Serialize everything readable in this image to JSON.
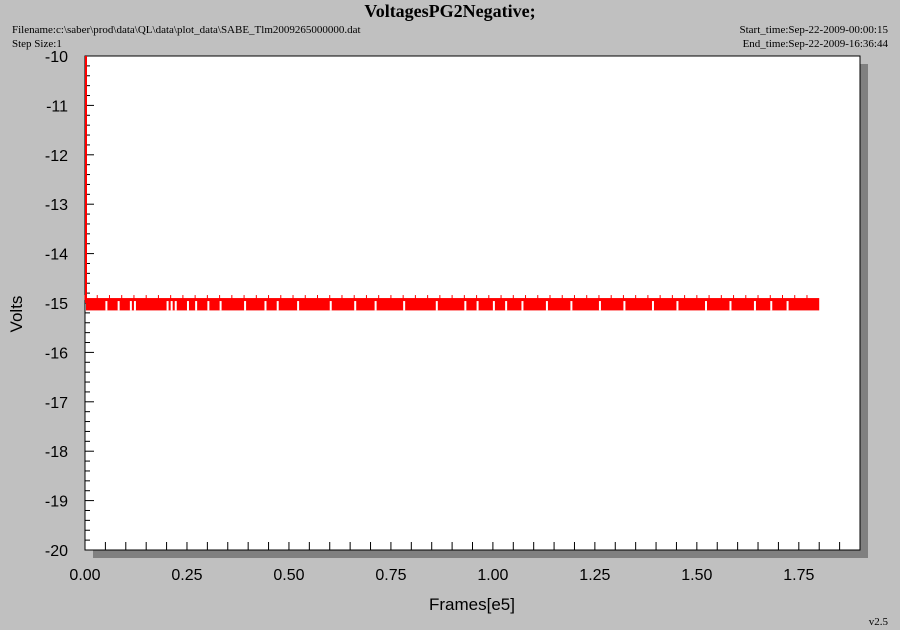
{
  "header": {
    "title": "VoltagesPG2Negative;",
    "filename_label": "Filename:",
    "filename": "c:\\saber\\prod\\data\\QL\\data\\plot_data\\SABE_Tlm2009265000000.dat",
    "step_size_label": "Step Size:",
    "step_size": "1",
    "start_time_label": "Start_time:",
    "start_time": "Sep-22-2009-00:00:15",
    "end_time_label": "End_time:",
    "end_time": "Sep-22-2009-16:36:44"
  },
  "footer": {
    "version": "v2.5"
  },
  "colors": {
    "background": "#c0c0c0",
    "plot_area": "#ffffff",
    "series": "#ff0000",
    "shadow": "#808080"
  },
  "chart_data": {
    "type": "scatter",
    "title": "VoltagesPG2Negative;",
    "xlabel": "Frames[e5]",
    "ylabel": "Volts",
    "xlim": [
      0.0,
      1.9
    ],
    "ylim": [
      -20,
      -10
    ],
    "x_ticks": [
      "0.00",
      "0.25",
      "0.50",
      "0.75",
      "1.00",
      "1.25",
      "1.50",
      "1.75"
    ],
    "y_ticks": [
      "-10",
      "-11",
      "-12",
      "-13",
      "-14",
      "-15",
      "-16",
      "-17",
      "-18",
      "-19",
      "-20"
    ],
    "grid": false,
    "legend": "none",
    "series": [
      {
        "color": "#ff0000",
        "value_band": [
          -15.15,
          -14.9
        ],
        "x_range": [
          0.0,
          1.8
        ],
        "gaps_x": [
          0.05,
          0.08,
          0.11,
          0.12,
          0.2,
          0.21,
          0.22,
          0.25,
          0.27,
          0.3,
          0.33,
          0.39,
          0.44,
          0.47,
          0.52,
          0.6,
          0.66,
          0.71,
          0.78,
          0.86,
          0.93,
          0.96,
          1.0,
          1.03,
          1.07,
          1.13,
          1.19,
          1.26,
          1.32,
          1.39,
          1.45,
          1.52,
          1.58,
          1.64,
          1.68,
          1.72
        ],
        "initial_spike": {
          "x": 0.0,
          "y_range": [
            -15.0,
            -10.0
          ]
        }
      }
    ]
  }
}
